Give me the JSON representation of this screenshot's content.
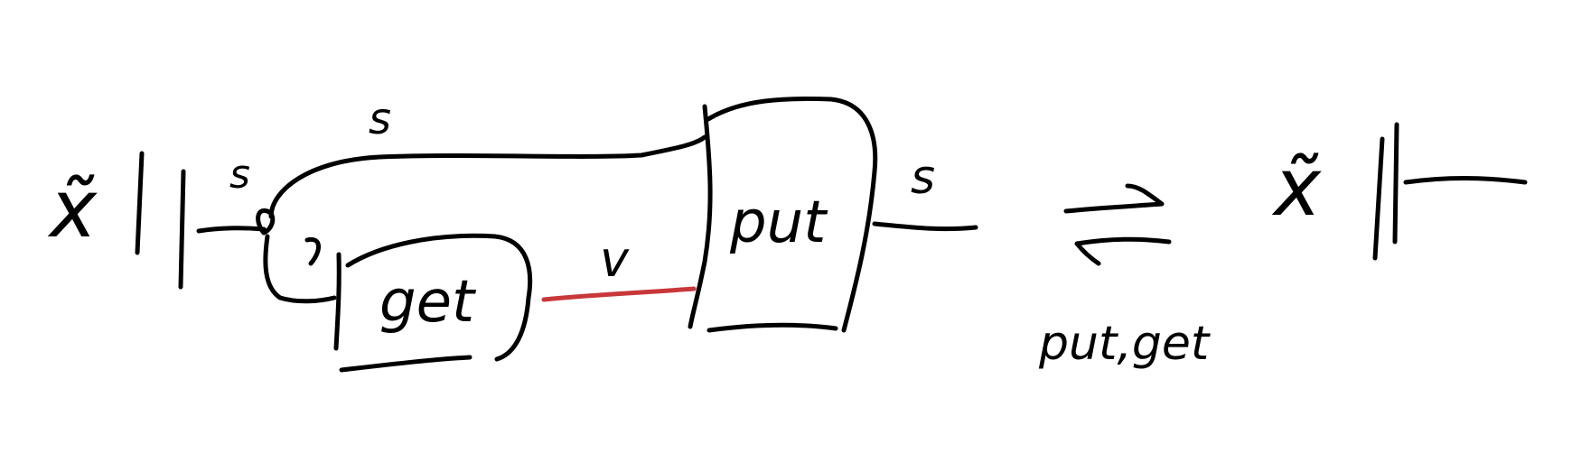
{
  "diagram": {
    "left_state_symbol": "x̃",
    "output_label": "s",
    "top_wire_label": "s",
    "input_wire_label": "s",
    "right_output_label": "s",
    "get_box_label": "get",
    "put_box_label": "put",
    "value_wire_label": "v",
    "rewrite_rule_label": "put,get",
    "right_state_symbol": "x̃",
    "colors": {
      "ink": "#000000",
      "value_wire": "#c8373a"
    }
  }
}
